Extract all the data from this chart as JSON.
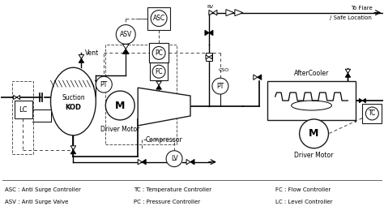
{
  "bg_color": "#ffffff",
  "line_color": "#1a1a1a",
  "legend_items": [
    [
      "ASC : Anti Surge Controller",
      "TC : Temperature Controller",
      "FC : Flow Controller"
    ],
    [
      "ASV : Anti Surge Valve",
      "PC : Pressure Controller",
      "LC : Level Controller"
    ]
  ]
}
